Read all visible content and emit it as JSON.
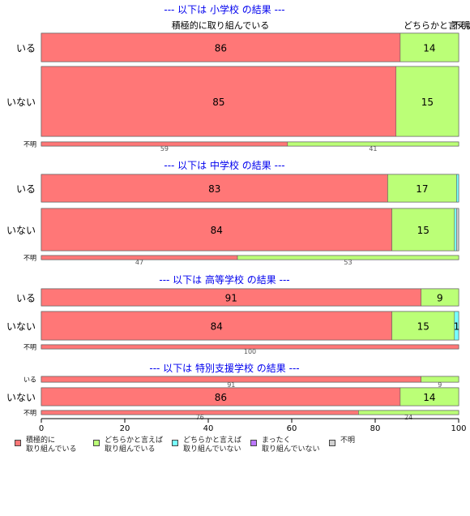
{
  "colors": {
    "cat1": "#ff7777",
    "cat2": "#bbff77",
    "cat3": "#77ffff",
    "cat4": "#bb77ff",
    "unknown": "#d0d0d0",
    "panel_title": "#0000ee"
  },
  "legend": [
    {
      "label": "積極的に\n取り組んでいる",
      "color": "#ff7777"
    },
    {
      "label": "どちらかと言えば\n取り組んでいる",
      "color": "#bbff77"
    },
    {
      "label": "どちらかと言えば\n取り組んでいない",
      "color": "#77ffff"
    },
    {
      "label": "まったく\n取り組んでいない",
      "color": "#bb77ff"
    },
    {
      "label": "不明",
      "color": "#d0d0d0"
    }
  ],
  "chart_data": {
    "type": "bar",
    "orientation": "horizontal",
    "stacked": true,
    "xlim": [
      0,
      100
    ],
    "x_ticks": [
      "0",
      "20",
      "40",
      "60",
      "80",
      "100"
    ],
    "grid": false,
    "legend_position": "bottom",
    "series_names": [
      "積極的に取り組んでいる",
      "どちらかと言えば取り組んでいる",
      "どちらかと言えば取り組んでいない",
      "まったく取り組んでいない",
      "不明"
    ],
    "top_labels": [
      {
        "text": "積極的に取り組んでいる"
      },
      {
        "text": "どちらかと言えば取り組んでいる"
      },
      {
        "text": "不明"
      }
    ],
    "panels": [
      {
        "title": "--- 以下は 小学校 の結果 ---",
        "rows": [
          {
            "label": "いる",
            "values": [
              86,
              14,
              0,
              0,
              0
            ],
            "labels": [
              "86",
              "14",
              "",
              "",
              ""
            ]
          },
          {
            "label": "いない",
            "values": [
              85,
              15,
              0,
              0,
              0
            ],
            "labels": [
              "85",
              "15",
              "",
              "",
              ""
            ]
          },
          {
            "label": "不明",
            "values": [
              59,
              41,
              0,
              0,
              0
            ],
            "labels": [
              "59",
              "41",
              "",
              "",
              ""
            ]
          }
        ]
      },
      {
        "title": "--- 以下は 中学校 の結果 ---",
        "rows": [
          {
            "label": "いる",
            "values": [
              83,
              16.5,
              0.5,
              0,
              0
            ],
            "labels": [
              "83",
              "17",
              "",
              "",
              ""
            ]
          },
          {
            "label": "いない",
            "values": [
              84,
              15,
              0.5,
              0,
              0.5
            ],
            "labels": [
              "84",
              "15",
              "",
              "",
              ""
            ]
          },
          {
            "label": "不明",
            "values": [
              47,
              53,
              0,
              0,
              0
            ],
            "labels": [
              "47",
              "53",
              "",
              "",
              ""
            ]
          }
        ]
      },
      {
        "title": "--- 以下は 高等学校 の結果 ---",
        "rows": [
          {
            "label": "いる",
            "values": [
              91,
              9,
              0,
              0,
              0
            ],
            "labels": [
              "91",
              "9",
              "",
              "",
              ""
            ]
          },
          {
            "label": "いない",
            "values": [
              84,
              15,
              1,
              0,
              0
            ],
            "labels": [
              "84",
              "15",
              "1",
              "",
              ""
            ]
          },
          {
            "label": "不明",
            "values": [
              100,
              0,
              0,
              0,
              0
            ],
            "labels": [
              "100",
              "",
              "",
              "",
              ""
            ]
          }
        ]
      },
      {
        "title": "--- 以下は 特別支援学校 の結果 ---",
        "rows": [
          {
            "label": "いる",
            "values": [
              91,
              9,
              0,
              0,
              0
            ],
            "labels": [
              "91",
              "9",
              "",
              "",
              ""
            ]
          },
          {
            "label": "いない",
            "values": [
              86,
              14,
              0,
              0,
              0
            ],
            "labels": [
              "86",
              "14",
              "",
              "",
              ""
            ]
          },
          {
            "label": "不明",
            "values": [
              76,
              24,
              0,
              0,
              0
            ],
            "labels": [
              "76",
              "24",
              "",
              "",
              ""
            ]
          }
        ]
      }
    ]
  }
}
